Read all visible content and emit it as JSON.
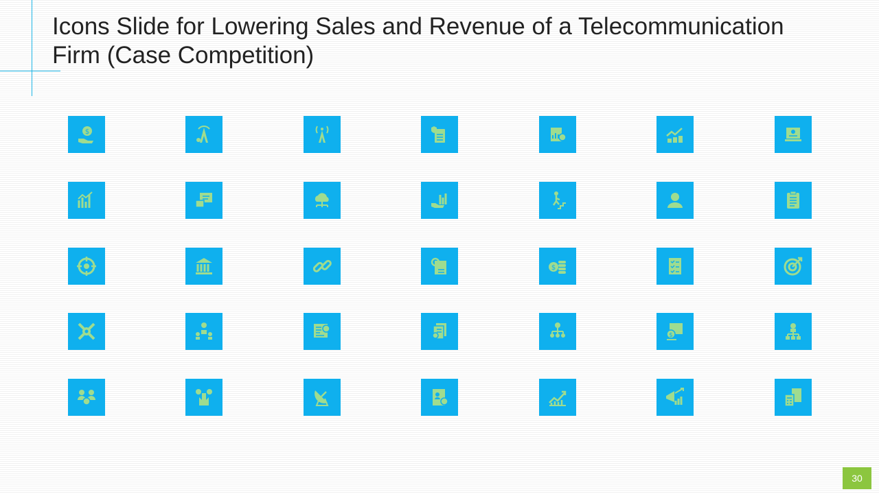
{
  "slide": {
    "title": "Icons Slide for Lowering Sales and Revenue of a Telecommunication Firm (Case Competition)",
    "page_number": "30"
  },
  "colors": {
    "tile": "#0fb0ee",
    "glyph": "#9fdc8f",
    "accent_line": "#1fb6e6",
    "page_badge": "#8cc63f"
  },
  "icons": [
    [
      "dollar-hand-icon",
      "signal-tower-gear-icon",
      "antenna-tower-icon",
      "secure-document-icon",
      "report-gear-icon",
      "growth-chart-coins-icon",
      "laptop-analytics-icon"
    ],
    [
      "bar-chart-dollar-icon",
      "monitor-handshake-icon",
      "cloud-network-icon",
      "hand-growth-chart-icon",
      "climbing-stairs-icon",
      "user-profile-icon",
      "clipboard-icon"
    ],
    [
      "crosshair-target-icon",
      "bank-building-icon",
      "chain-link-icon",
      "document-search-icon",
      "dollar-coins-stack-icon",
      "checklist-icon",
      "target-dart-icon"
    ],
    [
      "wrench-gear-icon",
      "finance-team-icon",
      "dashboard-search-icon",
      "financial-documents-icon",
      "team-hierarchy-icon",
      "dollar-presentation-icon",
      "org-chart-icon"
    ],
    [
      "team-gear-icon",
      "hands-dollar-icon",
      "satellite-dish-icon",
      "user-document-icon",
      "line-chart-growth-icon",
      "megaphone-growth-icon",
      "calculator-report-icon"
    ]
  ]
}
